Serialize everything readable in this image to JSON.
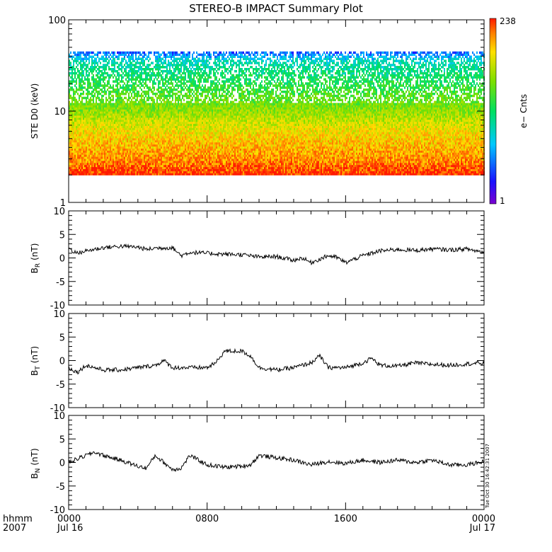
{
  "title": "STEREO-B IMPACT Summary Plot",
  "timestamp": "Tue Oct 30 16:42:31 2007",
  "colors": {
    "trace": "#000000",
    "axis": "#000000",
    "background": "#ffffff"
  },
  "time_axis": {
    "corner_label_1": "hhmm",
    "corner_label_2": "2007",
    "ticks": [
      {
        "hours": 0,
        "label": "0000",
        "sublabel": "Jul 16"
      },
      {
        "hours": 8,
        "label": "0800",
        "sublabel": ""
      },
      {
        "hours": 16,
        "label": "1600",
        "sublabel": ""
      },
      {
        "hours": 24,
        "label": "0000",
        "sublabel": "Jul 17"
      }
    ]
  },
  "chart_data": [
    {
      "id": "spectrogram",
      "type": "heatmap",
      "ylabel": "STE D0 (keV)",
      "yscale": "log",
      "ylim": [
        1,
        100
      ],
      "yticks": [
        1,
        10,
        100
      ],
      "xlim_hours": [
        0,
        24
      ],
      "colorbar": {
        "label": "e− Cnts",
        "min": 1,
        "max": 238,
        "max_label": "238",
        "min_label": "1"
      },
      "energy_profile": [
        {
          "keV": 2.0,
          "counts": 238
        },
        {
          "keV": 2.3,
          "counts": 200
        },
        {
          "keV": 3.0,
          "counts": 140
        },
        {
          "keV": 4.5,
          "counts": 110
        },
        {
          "keV": 6.5,
          "counts": 80
        },
        {
          "keV": 10,
          "counts": 45
        },
        {
          "keV": 20,
          "counts": 20
        },
        {
          "keV": 35,
          "counts": 10
        },
        {
          "keV": 45,
          "counts": 3
        }
      ]
    },
    {
      "id": "br",
      "type": "line",
      "ylabel_main": "B",
      "ylabel_sub": "R",
      "ylabel_unit": "(nT)",
      "ylim": [
        -10,
        10
      ],
      "yticks": [
        -10,
        -5,
        0,
        5,
        10
      ],
      "series": [
        {
          "x": [
            0,
            0.5,
            1,
            2,
            3,
            4,
            4.5,
            5,
            6,
            6.5,
            7,
            8,
            9,
            10,
            11,
            12,
            13,
            13.5,
            14,
            15,
            15.5,
            16,
            17,
            18,
            19,
            20,
            21,
            22,
            23,
            24
          ],
          "y": [
            2,
            1,
            1.5,
            2.2,
            2.5,
            2.3,
            1.8,
            2.1,
            2.2,
            0.5,
            1.2,
            1,
            0.8,
            0.7,
            0.2,
            0.3,
            -0.5,
            0,
            -1,
            0.5,
            0.1,
            -1,
            0.5,
            1.5,
            1.8,
            1.6,
            1.9,
            1.7,
            1.9,
            1.2
          ]
        }
      ]
    },
    {
      "id": "bt",
      "type": "line",
      "ylabel_main": "B",
      "ylabel_sub": "T",
      "ylabel_unit": "(nT)",
      "ylim": [
        -10,
        10
      ],
      "yticks": [
        -10,
        -5,
        0,
        5,
        10
      ],
      "series": [
        {
          "x": [
            0,
            0.5,
            1,
            2,
            3,
            4,
            5,
            5.5,
            6,
            7,
            8,
            8.5,
            9,
            10,
            10.5,
            11,
            12,
            13,
            14,
            14.5,
            15,
            16,
            17,
            17.5,
            18,
            19,
            20,
            21,
            22,
            23,
            24
          ],
          "y": [
            -1.5,
            -2.5,
            -1,
            -2,
            -2,
            -1.5,
            -1,
            0,
            -1.5,
            -1.5,
            -1.5,
            -0.5,
            2,
            2,
            1,
            -1.5,
            -2,
            -1.5,
            -0.5,
            1,
            -1.5,
            -1.5,
            -0.5,
            0.5,
            -1,
            -1.2,
            -0.5,
            -0.8,
            -1,
            -0.7,
            -0.5
          ]
        }
      ]
    },
    {
      "id": "bn",
      "type": "line",
      "ylabel_main": "B",
      "ylabel_sub": "N",
      "ylabel_unit": "(nT)",
      "ylim": [
        -10,
        10
      ],
      "yticks": [
        -10,
        -5,
        0,
        5,
        10
      ],
      "series": [
        {
          "x": [
            0,
            1,
            1.5,
            2,
            3,
            4,
            4.5,
            5,
            6,
            6.5,
            7,
            8,
            9,
            10,
            10.5,
            11,
            12,
            13,
            14,
            15,
            16,
            17,
            18,
            19,
            20,
            21,
            22,
            23,
            24
          ],
          "y": [
            0,
            1.5,
            2.2,
            1.5,
            0.5,
            -0.8,
            -1.2,
            1.5,
            -1.5,
            -1.2,
            1.5,
            -0.5,
            -1,
            -0.8,
            -0.5,
            1.5,
            1,
            0.5,
            -0.5,
            0.2,
            -0.2,
            0.5,
            0,
            0.5,
            0,
            0.5,
            -0.5,
            -0.5,
            0.2
          ]
        }
      ]
    }
  ]
}
